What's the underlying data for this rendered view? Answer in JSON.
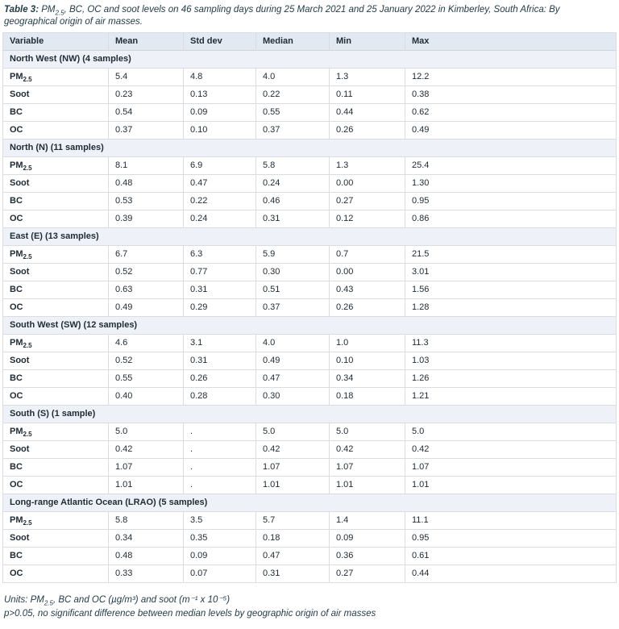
{
  "title": {
    "label": "Table 3:",
    "pm_base": " PM",
    "pm_sub": "2.5",
    "rest": ", BC, OC and soot levels on 46 sampling days during 25 March 2021 and 25 January 2022 in Kimberley, South Africa: By geographical origin of air masses."
  },
  "colors": {
    "header_bg": "#e2e9f2",
    "section_bg": "#eef2f8",
    "border": "#d9dde2",
    "text": "#212d36",
    "caption_text": "#253c49"
  },
  "table": {
    "columns": [
      "Variable",
      "Mean",
      "Std dev",
      "Median",
      "Min",
      "Max"
    ],
    "sections": [
      {
        "header": "North West (NW) (4 samples)",
        "rows": [
          {
            "variable": "PM",
            "variable_sub": "2.5",
            "values": [
              "5.4",
              "4.8",
              "4.0",
              "1.3",
              "12.2"
            ]
          },
          {
            "variable": "Soot",
            "variable_sub": "",
            "values": [
              "0.23",
              "0.13",
              "0.22",
              "0.11",
              "0.38"
            ]
          },
          {
            "variable": "BC",
            "variable_sub": "",
            "values": [
              "0.54",
              "0.09",
              "0.55",
              "0.44",
              "0.62"
            ]
          },
          {
            "variable": "OC",
            "variable_sub": "",
            "values": [
              "0.37",
              "0.10",
              "0.37",
              "0.26",
              "0.49"
            ]
          }
        ]
      },
      {
        "header": "North (N) (11 samples)",
        "rows": [
          {
            "variable": "PM",
            "variable_sub": "2.5",
            "values": [
              "8.1",
              "6.9",
              "5.8",
              "1.3",
              "25.4"
            ]
          },
          {
            "variable": "Soot",
            "variable_sub": "",
            "values": [
              "0.48",
              "0.47",
              "0.24",
              "0.00",
              "1.30"
            ]
          },
          {
            "variable": "BC",
            "variable_sub": "",
            "values": [
              "0.53",
              "0.22",
              "0.46",
              "0.27",
              "0.95"
            ]
          },
          {
            "variable": "OC",
            "variable_sub": "",
            "values": [
              "0.39",
              "0.24",
              "0.31",
              "0.12",
              "0.86"
            ]
          }
        ]
      },
      {
        "header": "East (E) (13 samples)",
        "rows": [
          {
            "variable": "PM",
            "variable_sub": "2.5",
            "values": [
              "6.7",
              "6.3",
              "5.9",
              "0.7",
              "21.5"
            ]
          },
          {
            "variable": "Soot",
            "variable_sub": "",
            "values": [
              "0.52",
              "0.77",
              "0.30",
              "0.00",
              "3.01"
            ]
          },
          {
            "variable": "BC",
            "variable_sub": "",
            "values": [
              "0.63",
              "0.31",
              "0.51",
              "0.43",
              "1.56"
            ]
          },
          {
            "variable": "OC",
            "variable_sub": "",
            "values": [
              "0.49",
              "0.29",
              "0.37",
              "0.26",
              "1.28"
            ]
          }
        ]
      },
      {
        "header": "South West (SW) (12 samples)",
        "rows": [
          {
            "variable": "PM",
            "variable_sub": "2.5",
            "values": [
              "4.6",
              "3.1",
              "4.0",
              "1.0",
              "11.3"
            ]
          },
          {
            "variable": "Soot",
            "variable_sub": "",
            "values": [
              "0.52",
              "0.31",
              "0.49",
              "0.10",
              "1.03"
            ]
          },
          {
            "variable": "BC",
            "variable_sub": "",
            "values": [
              "0.55",
              "0.26",
              "0.47",
              "0.34",
              "1.26"
            ]
          },
          {
            "variable": "OC",
            "variable_sub": "",
            "values": [
              "0.40",
              "0.28",
              "0.30",
              "0.18",
              "1.21"
            ]
          }
        ]
      },
      {
        "header": "South (S) (1 sample)",
        "rows": [
          {
            "variable": "PM",
            "variable_sub": "2.5",
            "values": [
              "5.0",
              ".",
              "5.0",
              "5.0",
              "5.0"
            ]
          },
          {
            "variable": "Soot",
            "variable_sub": "",
            "values": [
              "0.42",
              ".",
              "0.42",
              "0.42",
              "0.42"
            ]
          },
          {
            "variable": "BC",
            "variable_sub": "",
            "values": [
              "1.07",
              ".",
              "1.07",
              "1.07",
              "1.07"
            ]
          },
          {
            "variable": "OC",
            "variable_sub": "",
            "values": [
              "1.01",
              ".",
              "1.01",
              "1.01",
              "1.01"
            ]
          }
        ]
      },
      {
        "header": "Long-range Atlantic Ocean (LRAO) (5 samples)",
        "rows": [
          {
            "variable": "PM",
            "variable_sub": "2.5",
            "values": [
              "5.8",
              "3.5",
              "5.7",
              "1.4",
              "11.1"
            ]
          },
          {
            "variable": "Soot",
            "variable_sub": "",
            "values": [
              "0.34",
              "0.35",
              "0.18",
              "0.09",
              "0.95"
            ]
          },
          {
            "variable": "BC",
            "variable_sub": "",
            "values": [
              "0.48",
              "0.09",
              "0.47",
              "0.36",
              "0.61"
            ]
          },
          {
            "variable": "OC",
            "variable_sub": "",
            "values": [
              "0.33",
              "0.07",
              "0.31",
              "0.27",
              "0.44"
            ]
          }
        ]
      }
    ]
  },
  "footnotes": {
    "units_prefix": "Units: PM",
    "units_sub": "2.5",
    "units_rest": ", BC and OC (µg/m³) and soot (m⁻¹ x 10⁻⁵)",
    "pvalue": "p>0.05, no significant difference between median levels by geographic origin of air masses"
  }
}
